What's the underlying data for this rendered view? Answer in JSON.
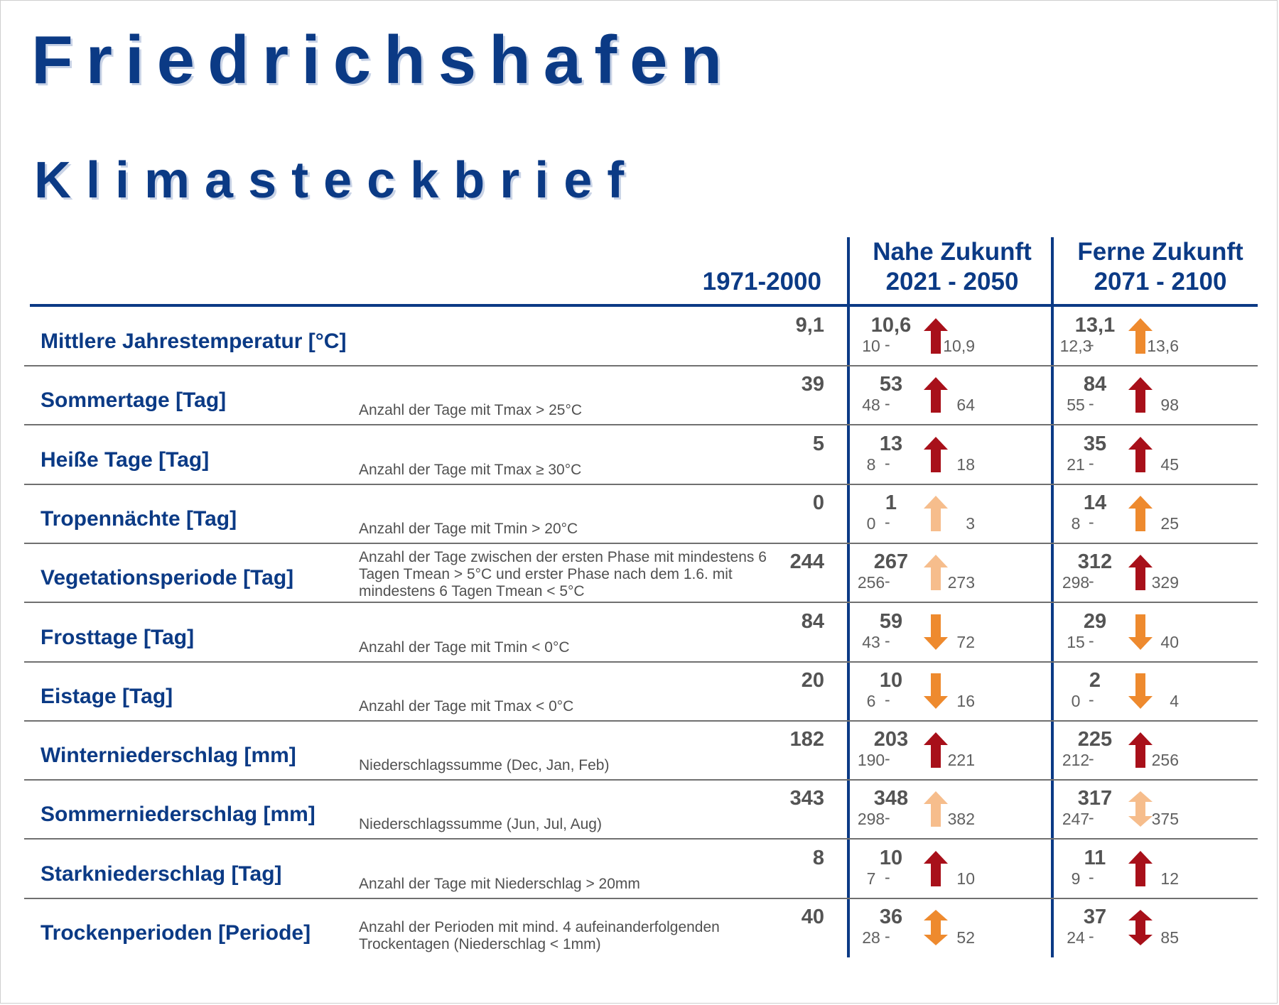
{
  "title": "Friedrichshafen",
  "subtitle": "Klimasteckbrief",
  "columns": {
    "baseline": "1971-2000",
    "near_line1": "Nahe Zukunft",
    "near_line2": "2021 - 2050",
    "far_line1": "Ferne Zukunft",
    "far_line2": "2071 - 2100"
  },
  "colors": {
    "dark_red": "#a8101a",
    "orange": "#ee8a2e",
    "light_orange": "#f6bd8c",
    "navy": "#0b3a85"
  },
  "rows": [
    {
      "label": "Mittlere Jahrestemperatur [°C]",
      "desc": "",
      "base": "9,1",
      "near": {
        "mean": "10,6",
        "low": "10",
        "high": "10,9",
        "arrow": "up",
        "color": "dark_red"
      },
      "far": {
        "mean": "13,1",
        "low": "12,3",
        "high": "13,6",
        "arrow": "up",
        "color": "orange"
      }
    },
    {
      "label": "Sommertage [Tag]",
      "desc": "Anzahl der Tage mit Tmax > 25°C",
      "base": "39",
      "near": {
        "mean": "53",
        "low": "48",
        "high": "64",
        "arrow": "up",
        "color": "dark_red"
      },
      "far": {
        "mean": "84",
        "low": "55",
        "high": "98",
        "arrow": "up",
        "color": "dark_red"
      }
    },
    {
      "label": "Heiße Tage [Tag]",
      "desc": "Anzahl der Tage mit Tmax ≥ 30°C",
      "base": "5",
      "near": {
        "mean": "13",
        "low": "8",
        "high": "18",
        "arrow": "up",
        "color": "dark_red"
      },
      "far": {
        "mean": "35",
        "low": "21",
        "high": "45",
        "arrow": "up",
        "color": "dark_red"
      }
    },
    {
      "label": "Tropennächte [Tag]",
      "desc": "Anzahl der Tage mit Tmin > 20°C",
      "base": "0",
      "near": {
        "mean": "1",
        "low": "0",
        "high": "3",
        "arrow": "up",
        "color": "light_orange"
      },
      "far": {
        "mean": "14",
        "low": "8",
        "high": "25",
        "arrow": "up",
        "color": "orange"
      }
    },
    {
      "label": "Vegetationsperiode [Tag]",
      "desc": "Anzahl der Tage zwischen der ersten Phase mit mindestens 6 Tagen Tmean > 5°C und erster Phase nach dem 1.6. mit mindestens 6 Tagen Tmean < 5°C",
      "base": "244",
      "near": {
        "mean": "267",
        "low": "256",
        "high": "273",
        "arrow": "up",
        "color": "light_orange"
      },
      "far": {
        "mean": "312",
        "low": "298",
        "high": "329",
        "arrow": "up",
        "color": "dark_red"
      }
    },
    {
      "label": "Frosttage [Tag]",
      "desc": "Anzahl der Tage mit Tmin < 0°C",
      "base": "84",
      "near": {
        "mean": "59",
        "low": "43",
        "high": "72",
        "arrow": "down",
        "color": "orange"
      },
      "far": {
        "mean": "29",
        "low": "15",
        "high": "40",
        "arrow": "down",
        "color": "orange"
      }
    },
    {
      "label": "Eistage [Tag]",
      "desc": "Anzahl der Tage mit Tmax < 0°C",
      "base": "20",
      "near": {
        "mean": "10",
        "low": "6",
        "high": "16",
        "arrow": "down",
        "color": "orange"
      },
      "far": {
        "mean": "2",
        "low": "0",
        "high": "4",
        "arrow": "down",
        "color": "orange"
      }
    },
    {
      "label": "Winterniederschlag [mm]",
      "desc": "Niederschlagssumme (Dec, Jan, Feb)",
      "base": "182",
      "near": {
        "mean": "203",
        "low": "190",
        "high": "221",
        "arrow": "up",
        "color": "dark_red"
      },
      "far": {
        "mean": "225",
        "low": "212",
        "high": "256",
        "arrow": "up",
        "color": "dark_red"
      }
    },
    {
      "label": "Sommerniederschlag [mm]",
      "desc": "Niederschlagssumme (Jun, Jul, Aug)",
      "base": "343",
      "near": {
        "mean": "348",
        "low": "298",
        "high": "382",
        "arrow": "up",
        "color": "light_orange"
      },
      "far": {
        "mean": "317",
        "low": "247",
        "high": "375",
        "arrow": "both",
        "color": "light_orange"
      }
    },
    {
      "label": "Starkniederschlag [Tag]",
      "desc": "Anzahl der Tage mit Niederschlag > 20mm",
      "base": "8",
      "near": {
        "mean": "10",
        "low": "7",
        "high": "10",
        "arrow": "up",
        "color": "dark_red"
      },
      "far": {
        "mean": "11",
        "low": "9",
        "high": "12",
        "arrow": "up",
        "color": "dark_red"
      }
    },
    {
      "label": "Trockenperioden [Periode]",
      "desc": "Anzahl der Perioden mit mind. 4 aufeinanderfolgenden Trockentagen (Niederschlag < 1mm)",
      "base": "40",
      "near": {
        "mean": "36",
        "low": "28",
        "high": "52",
        "arrow": "both",
        "color": "orange"
      },
      "far": {
        "mean": "37",
        "low": "24",
        "high": "85",
        "arrow": "both",
        "color": "dark_red"
      }
    }
  ]
}
